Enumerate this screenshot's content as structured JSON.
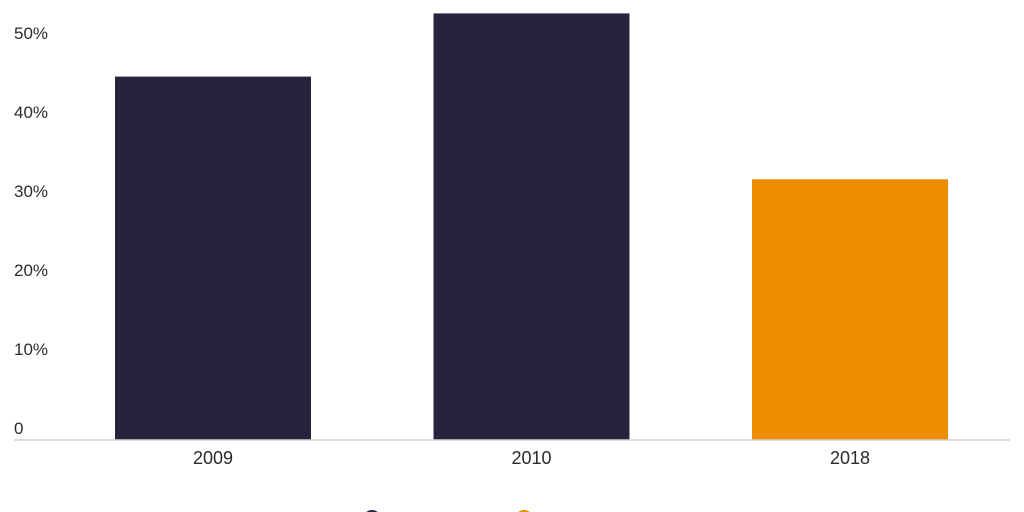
{
  "chart_data": {
    "type": "bar",
    "categories": [
      "2009",
      "2010",
      "2018"
    ],
    "values": [
      46,
      54,
      33
    ],
    "bar_colors": [
      "#28233c",
      "#28233c",
      "#ee8c00"
    ],
    "ylim": [
      0,
      55
    ],
    "y_ticks": [
      {
        "value": 0,
        "label": "0"
      },
      {
        "value": 10,
        "label": "10%"
      },
      {
        "value": 20,
        "label": "20%"
      },
      {
        "value": 30,
        "label": "30%"
      },
      {
        "value": 40,
        "label": "40%"
      },
      {
        "value": 50,
        "label": "50%"
      }
    ],
    "grid": false,
    "legend": {
      "placement": "bottom",
      "swatches": [
        {
          "color": "#28233c"
        },
        {
          "color": "#ee8c00"
        }
      ]
    },
    "title": "",
    "xlabel": "",
    "ylabel": ""
  }
}
